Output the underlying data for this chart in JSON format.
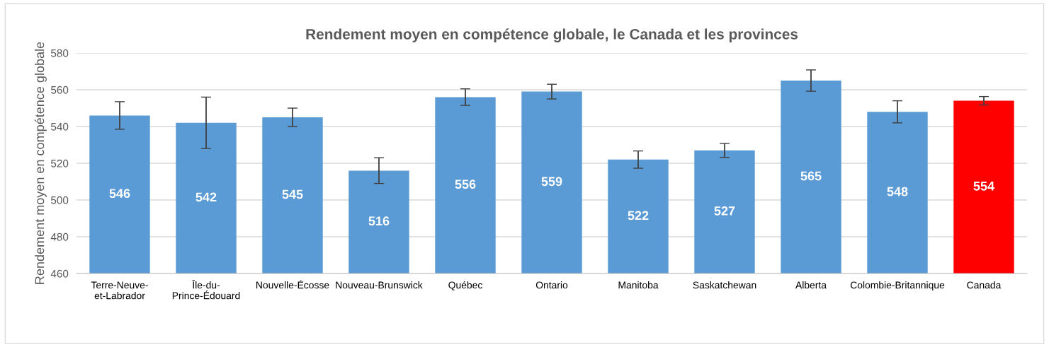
{
  "chart_data": {
    "type": "bar",
    "title": "Rendement moyen en compétence globale, le Canada et les provinces",
    "ylabel": "Rendement moyen en compétence globale",
    "categories": [
      "Terre-Neuve-\net-Labrador",
      "Île-du-\nPrince-Édouard",
      "Nouvelle-Écosse",
      "Nouveau-Brunswick",
      "Québec",
      "Ontario",
      "Manitoba",
      "Saskatchewan",
      "Alberta",
      "Colombie-Britannique",
      "Canada"
    ],
    "values": [
      546,
      542,
      545,
      516,
      556,
      559,
      522,
      527,
      565,
      548,
      554
    ],
    "errors": [
      7.5,
      14,
      5,
      7,
      4.5,
      4,
      4.7,
      3.8,
      5.8,
      6,
      2.3
    ],
    "colors": [
      "#5b9bd5",
      "#5b9bd5",
      "#5b9bd5",
      "#5b9bd5",
      "#5b9bd5",
      "#5b9bd5",
      "#5b9bd5",
      "#5b9bd5",
      "#5b9bd5",
      "#5b9bd5",
      "#ff0000"
    ],
    "ylim": [
      460,
      580
    ],
    "yticks": [
      460,
      480,
      500,
      520,
      540,
      560,
      580
    ],
    "grid": "y",
    "data_labels": true,
    "legend": false
  }
}
